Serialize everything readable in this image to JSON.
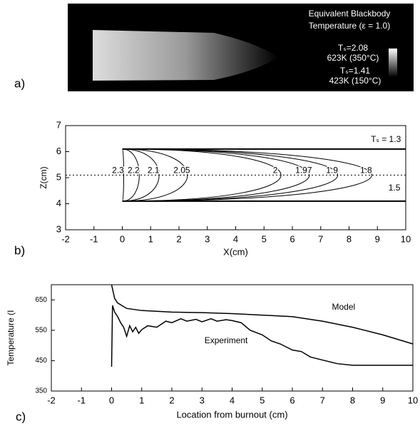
{
  "chart_data": [
    {
      "type": "image",
      "panel_label": "a)",
      "legend_title": [
        "Equivalent Blackbody",
        "Temperature (ε = 1.0)"
      ],
      "scale_top": [
        "Tₛ=2.08",
        "623K (350°C)"
      ],
      "scale_bottom": [
        "Tₛ=1.41",
        "423K (150°C)"
      ]
    },
    {
      "type": "contour",
      "panel_label": "b)",
      "xlabel": "X(cm)",
      "ylabel": "Z(cm)",
      "xlim": [
        -2,
        10
      ],
      "ylim": [
        3,
        7
      ],
      "xticks": [
        -2,
        -1,
        0,
        1,
        2,
        3,
        4,
        5,
        6,
        7,
        8,
        9,
        10
      ],
      "yticks": [
        3,
        4,
        5,
        6,
        7
      ],
      "jet_edges": [
        4.1,
        6.1
      ],
      "contours": [
        {
          "label": "2.3",
          "apex_x": 0.05
        },
        {
          "label": "2.2",
          "apex_x": 0.6
        },
        {
          "label": "2.1",
          "apex_x": 1.3
        },
        {
          "label": "2.05",
          "apex_x": 2.3
        },
        {
          "label": "2",
          "apex_x": 5.6
        },
        {
          "label": "1.97",
          "apex_x": 6.6
        },
        {
          "label": "1.9",
          "apex_x": 7.6
        },
        {
          "label": "1.8",
          "apex_x": 8.8
        }
      ],
      "annotations": [
        "Tₛ = 1.3",
        "1.5"
      ]
    },
    {
      "type": "line",
      "panel_label": "c)",
      "xlabel": "Location from burnout (cm)",
      "ylabel": "Temperature (I",
      "xlim": [
        -2,
        10
      ],
      "ylim": [
        350,
        700
      ],
      "xticks": [
        -2,
        -1,
        0,
        1,
        2,
        3,
        4,
        5,
        6,
        7,
        8,
        9,
        10
      ],
      "yticks": [
        350,
        450,
        550,
        650
      ],
      "series": [
        {
          "name": "Model",
          "color": "#000000",
          "x": [
            0,
            0.1,
            0.2,
            0.5,
            1,
            2,
            3,
            4,
            5,
            6,
            7,
            8,
            9,
            10
          ],
          "values": [
            700,
            655,
            640,
            622,
            615,
            610,
            608,
            605,
            600,
            595,
            580,
            560,
            535,
            505
          ]
        },
        {
          "name": "Experiment",
          "color": "#000000",
          "x": [
            0,
            0.03,
            0.1,
            0.2,
            0.3,
            0.4,
            0.5,
            0.6,
            0.7,
            0.8,
            0.9,
            1,
            1.2,
            1.5,
            1.8,
            2,
            2.3,
            2.5,
            2.8,
            3,
            3.3,
            3.5,
            3.8,
            4,
            4.3,
            4.6,
            5,
            5.3,
            5.6,
            6,
            6.3,
            6.6,
            7,
            7.5,
            8,
            9,
            10
          ],
          "values": [
            430,
            632,
            610,
            595,
            575,
            560,
            530,
            565,
            545,
            560,
            540,
            552,
            565,
            560,
            580,
            575,
            588,
            580,
            586,
            578,
            588,
            580,
            585,
            582,
            575,
            550,
            535,
            515,
            505,
            485,
            480,
            462,
            452,
            440,
            435,
            435,
            435
          ]
        }
      ]
    }
  ]
}
